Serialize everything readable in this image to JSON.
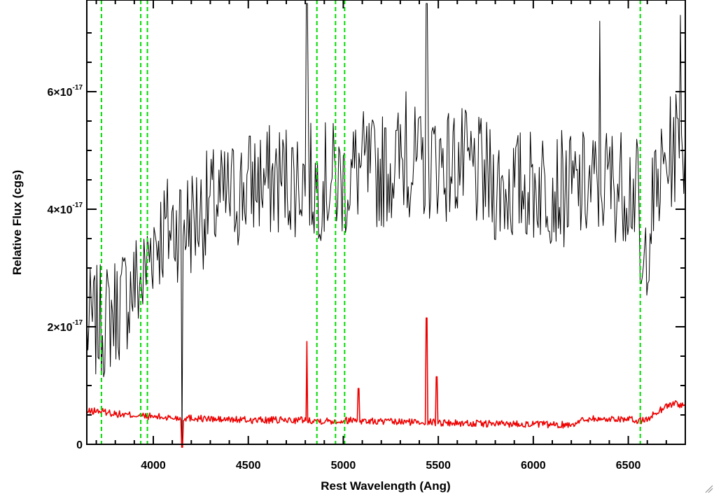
{
  "chart_data": {
    "type": "line",
    "title": "",
    "xlabel": "Rest Wavelength (Ang)",
    "ylabel": "Relative Flux (cgs)",
    "xlim": [
      3650,
      6800
    ],
    "ylim": [
      0,
      7.5e-17
    ],
    "x_ticks": [
      {
        "value": 4000,
        "label": "4000"
      },
      {
        "value": 4500,
        "label": "4500"
      },
      {
        "value": 5000,
        "label": "5000"
      },
      {
        "value": 5500,
        "label": "5500"
      },
      {
        "value": 6000,
        "label": "6000"
      },
      {
        "value": 6500,
        "label": "6500"
      }
    ],
    "y_ticks": [
      {
        "value": 0,
        "mantissa": "0",
        "exponent": ""
      },
      {
        "value": 2e-17,
        "mantissa": "2×10",
        "exponent": "-17"
      },
      {
        "value": 4e-17,
        "mantissa": "4×10",
        "exponent": "-17"
      },
      {
        "value": 6e-17,
        "mantissa": "6×10",
        "exponent": "-17"
      }
    ],
    "vertical_lines": {
      "color": "#00dd00",
      "style": "dashed",
      "x": [
        3727,
        3934,
        3969,
        4861,
        4959,
        5007,
        6563
      ]
    },
    "series": [
      {
        "color": "#000000",
        "x": [
          3650,
          3700,
          3750,
          3800,
          3850,
          3900,
          3950,
          3980,
          4000,
          4050,
          4100,
          4150,
          4200,
          4250,
          4300,
          4350,
          4400,
          4450,
          4500,
          4550,
          4600,
          4650,
          4700,
          4750,
          4800,
          4850,
          4900,
          4950,
          5000,
          5050,
          5100,
          5150,
          5200,
          5250,
          5300,
          5350,
          5400,
          5450,
          5500,
          5550,
          5600,
          5650,
          5700,
          5750,
          5800,
          5850,
          5900,
          5950,
          6000,
          6050,
          6100,
          6150,
          6200,
          6250,
          6300,
          6350,
          6400,
          6450,
          6500,
          6550,
          6570,
          6600,
          6650,
          6700,
          6750,
          6800
        ],
        "values": [
          2e-17,
          2.05e-17,
          2.1e-17,
          2.3e-17,
          2.5e-17,
          2.7e-17,
          2.8e-17,
          3.3e-17,
          3.5e-17,
          3.6e-17,
          3.7e-17,
          3.8e-17,
          3.8e-17,
          3.95e-17,
          4.05e-17,
          4.1e-17,
          4.2e-17,
          4.3e-17,
          4.4e-17,
          4.5e-17,
          4.45e-17,
          4.5e-17,
          4.55e-17,
          4.5e-17,
          4.6e-17,
          4.4e-17,
          4.5e-17,
          4.5e-17,
          4.45e-17,
          4.6e-17,
          4.7e-17,
          4.6e-17,
          4.65e-17,
          4.75e-17,
          4.8e-17,
          4.85e-17,
          4.7e-17,
          4.8e-17,
          4.85e-17,
          4.75e-17,
          4.8e-17,
          4.7e-17,
          4.6e-17,
          4.5e-17,
          4.4e-17,
          4.35e-17,
          4.35e-17,
          4.4e-17,
          4.4e-17,
          4.45e-17,
          4.4e-17,
          4.35e-17,
          4.3e-17,
          4.35e-17,
          4.35e-17,
          4.45e-17,
          4.5e-17,
          4.4e-17,
          4.45e-17,
          4.2e-17,
          2.3e-17,
          3.6e-17,
          4.3e-17,
          4.8e-17,
          5.1e-17,
          5e-17
        ],
        "emission_lines": [
          {
            "x": 4150,
            "peak": 0.0
          },
          {
            "x": 4808,
            "peak": 7.5e-17
          },
          {
            "x": 5330,
            "peak": 6e-17
          },
          {
            "x": 5440,
            "peak": 7.5e-17
          },
          {
            "x": 6350,
            "peak": 7.2e-17
          },
          {
            "x": 6775,
            "peak": 7.3e-17
          }
        ]
      },
      {
        "color": "#ee0000",
        "x": [
          3650,
          3700,
          3750,
          3800,
          3850,
          3900,
          3950,
          4000,
          4050,
          4100,
          4150,
          4200,
          4250,
          4300,
          4350,
          4400,
          4450,
          4500,
          4550,
          4600,
          4650,
          4700,
          4750,
          4800,
          4850,
          4900,
          4950,
          5000,
          5050,
          5100,
          5150,
          5200,
          5250,
          5300,
          5350,
          5400,
          5450,
          5500,
          5550,
          5600,
          5650,
          5700,
          5750,
          5800,
          5850,
          5900,
          5950,
          6000,
          6050,
          6100,
          6150,
          6200,
          6250,
          6300,
          6350,
          6400,
          6450,
          6500,
          6550,
          6600,
          6650,
          6700,
          6750,
          6800
        ],
        "values": [
          5.5e-18,
          5.7e-18,
          5.5e-18,
          5.2e-18,
          5e-18,
          5e-18,
          4.8e-18,
          4.7e-18,
          4.6e-18,
          4.5e-18,
          4.5e-18,
          4.5e-18,
          4.4e-18,
          4.3e-18,
          4.2e-18,
          4.2e-18,
          4.2e-18,
          4.1e-18,
          4.1e-18,
          4.1e-18,
          4.1e-18,
          4.1e-18,
          4.1e-18,
          4.2e-18,
          4.1e-18,
          4e-18,
          4e-18,
          4e-18,
          4.2e-18,
          4e-18,
          3.9e-18,
          3.9e-18,
          3.8e-18,
          3.8e-18,
          3.8e-18,
          3.8e-18,
          3.8e-18,
          3.7e-18,
          3.7e-18,
          3.6e-18,
          3.6e-18,
          3.5e-18,
          3.5e-18,
          3.5e-18,
          3.5e-18,
          3.5e-18,
          3.5e-18,
          3.4e-18,
          3.4e-18,
          3.3e-18,
          3.3e-18,
          3.4e-18,
          4e-18,
          4.5e-18,
          4.2e-18,
          4.3e-18,
          4.4e-18,
          4.2e-18,
          4e-18,
          4.2e-18,
          5.5e-18,
          6.5e-18,
          7e-18,
          6.5e-18
        ],
        "emission_lines": [
          {
            "x": 4150,
            "peak": -2e-18
          },
          {
            "x": 4808,
            "peak": 1.75e-17
          },
          {
            "x": 5080,
            "peak": 9.5e-18
          },
          {
            "x": 5440,
            "peak": 2.15e-17
          },
          {
            "x": 5490,
            "peak": 1.15e-17
          }
        ]
      }
    ],
    "grid": false,
    "legend": "none"
  }
}
